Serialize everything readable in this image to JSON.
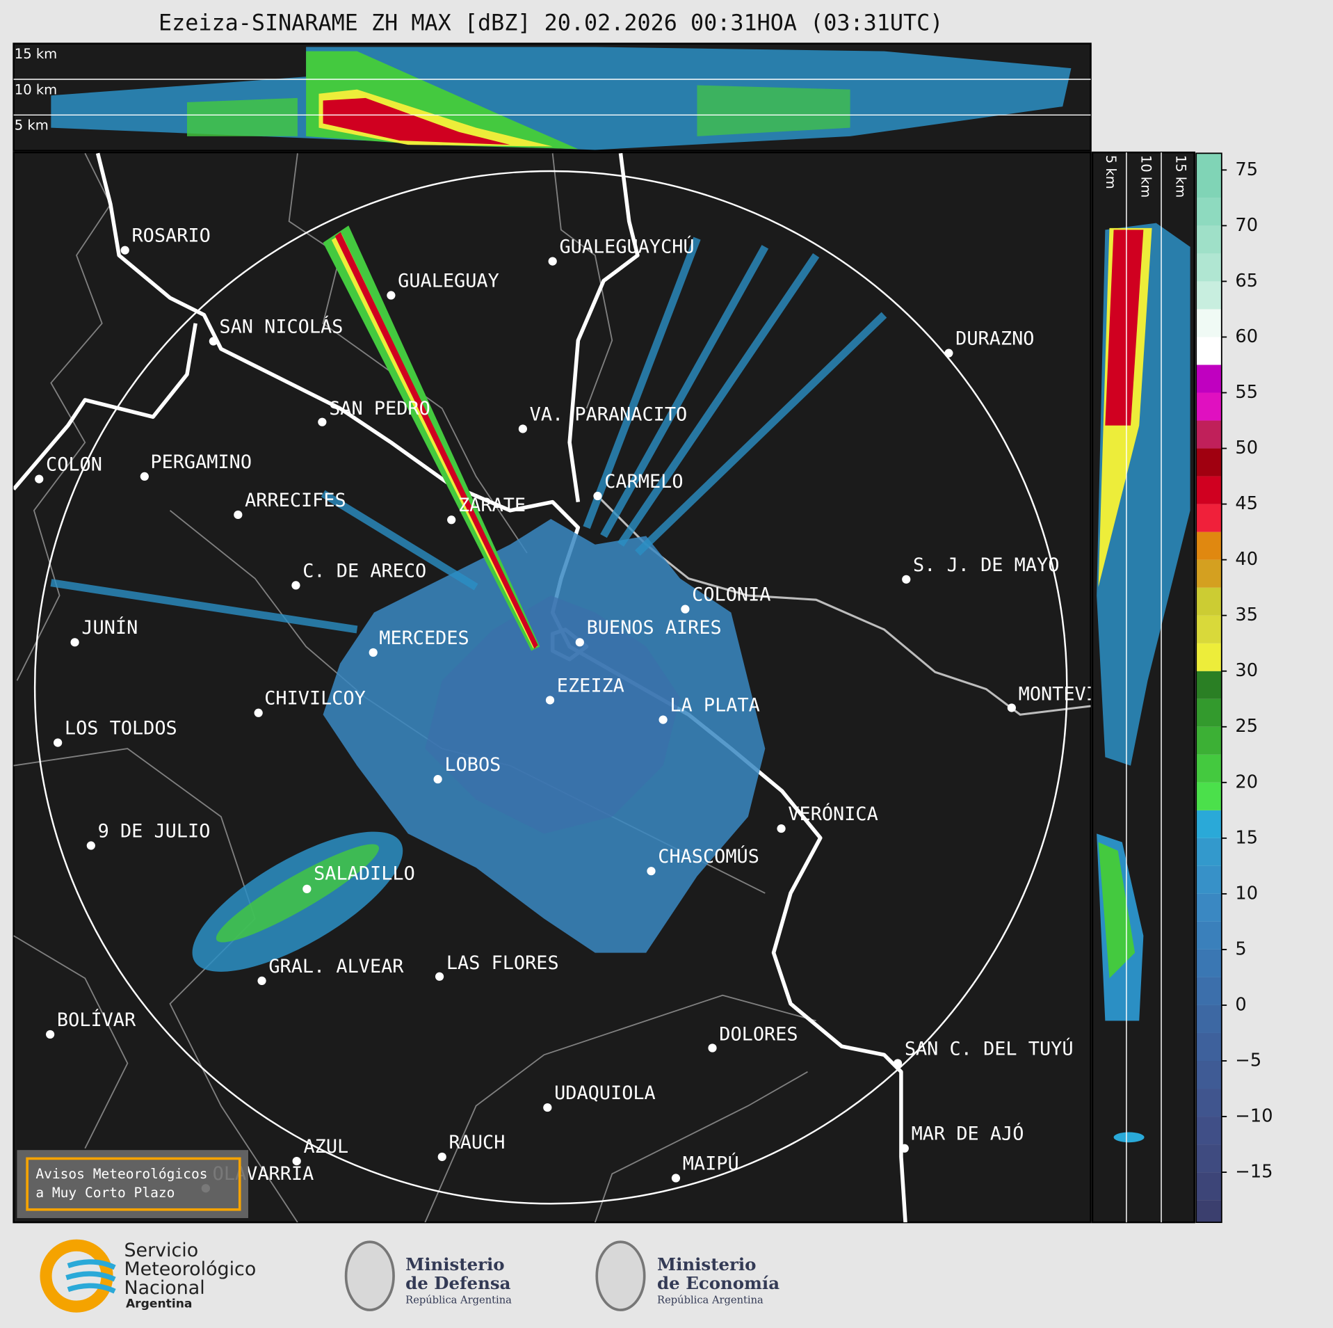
{
  "title": "Ezeiza-SINARAME ZH MAX [dBZ] 20.02.2026 00:31HOA (03:31UTC)",
  "top_panel": {
    "height_labels": [
      "15 km",
      "10 km",
      "5 km"
    ]
  },
  "side_panel": {
    "height_labels": [
      "5 km",
      "10 km",
      "15 km"
    ]
  },
  "cities": [
    {
      "name": "ROSARIO"
    },
    {
      "name": "GUALEGUAYCHÚ"
    },
    {
      "name": "GUALEGUAY"
    },
    {
      "name": "SAN NICOLÁS"
    },
    {
      "name": "DURAZNO"
    },
    {
      "name": "SAN PEDRO"
    },
    {
      "name": "VA. PARANACITO"
    },
    {
      "name": "COLON"
    },
    {
      "name": "PERGAMINO"
    },
    {
      "name": "CARMELO"
    },
    {
      "name": "ARRECIFES"
    },
    {
      "name": "ZÁRATE"
    },
    {
      "name": "S. J. DE MAYO"
    },
    {
      "name": "C. DE ARECO"
    },
    {
      "name": "COLONIA"
    },
    {
      "name": "BUENOS AIRES"
    },
    {
      "name": "JUNÍN"
    },
    {
      "name": "MERCEDES"
    },
    {
      "name": "EZEIZA"
    },
    {
      "name": "MONTEVIDEO"
    },
    {
      "name": "CHIVILCOY"
    },
    {
      "name": "LA PLATA"
    },
    {
      "name": "LOS TOLDOS"
    },
    {
      "name": "LOBOS"
    },
    {
      "name": "VERÓNICA"
    },
    {
      "name": "9 DE JULIO"
    },
    {
      "name": "CHASCOMÚS"
    },
    {
      "name": "SALADILLO"
    },
    {
      "name": "GRAL. ALVEAR"
    },
    {
      "name": "LAS FLORES"
    },
    {
      "name": "BOLÍVAR"
    },
    {
      "name": "DOLORES"
    },
    {
      "name": "SAN C. DEL TUYÚ"
    },
    {
      "name": "UDAQUIOLA"
    },
    {
      "name": "RAUCH"
    },
    {
      "name": "AZUL"
    },
    {
      "name": "MAR DE AJÓ"
    },
    {
      "name": "OLAVARRÍA"
    },
    {
      "name": "MAIPÚ"
    }
  ],
  "colorbar": {
    "lim": [
      -19.5,
      76.5
    ],
    "ticks": [
      75,
      70,
      65,
      60,
      55,
      50,
      45,
      40,
      35,
      30,
      25,
      20,
      15,
      10,
      5,
      0,
      {
        "value": -5,
        "label": "−5"
      },
      {
        "value": -10,
        "label": "−10"
      },
      {
        "value": -15,
        "label": "−15"
      }
    ],
    "bounds": [
      -19.5,
      -17.5,
      -15,
      -12.5,
      -10,
      -7.5,
      -5,
      -2.5,
      0,
      2.5,
      5,
      7.5,
      10,
      12.5,
      15,
      17.5,
      20,
      22.5,
      25,
      27.5,
      30,
      32.5,
      35,
      37.5,
      40,
      42.5,
      45,
      47.5,
      50,
      52.5,
      55,
      57.5,
      60,
      62.5,
      65,
      67.5,
      70,
      72.5,
      76.5
    ],
    "colors": [
      "#3b3f6e",
      "#3d4578",
      "#3f4b80",
      "#404f87",
      "#40558e",
      "#3f5b95",
      "#3e619c",
      "#3d68a3",
      "#3c6fab",
      "#3a77b3",
      "#3a80bb",
      "#3a88c2",
      "#3791c8",
      "#3399cc",
      "#2aa9d8",
      "#4be04b",
      "#44c93f",
      "#3cb035",
      "#339a2d",
      "#2a7f24",
      "#eded3a",
      "#d9d93a",
      "#cccc33",
      "#d4a020",
      "#e08810",
      "#f0203a",
      "#d00020",
      "#a00010",
      "#c0205a",
      "#e010c0",
      "#c000c0",
      "#ffffff",
      "#f0faf5",
      "#c8eedf",
      "#b0e6d2",
      "#9fe0c8",
      "#8edabf",
      "#80d4b6"
    ]
  },
  "notice": {
    "lines": [
      "Avisos Meteorológicos",
      "a Muy Corto Plazo"
    ]
  },
  "logos": {
    "smn": [
      "Servicio",
      "Meteorológico",
      "Nacional",
      "Argentina"
    ],
    "defensa": [
      "Ministerio",
      "de Defensa",
      "República Argentina"
    ],
    "economia": [
      "Ministerio",
      "de Economía",
      "República Argentina"
    ]
  }
}
